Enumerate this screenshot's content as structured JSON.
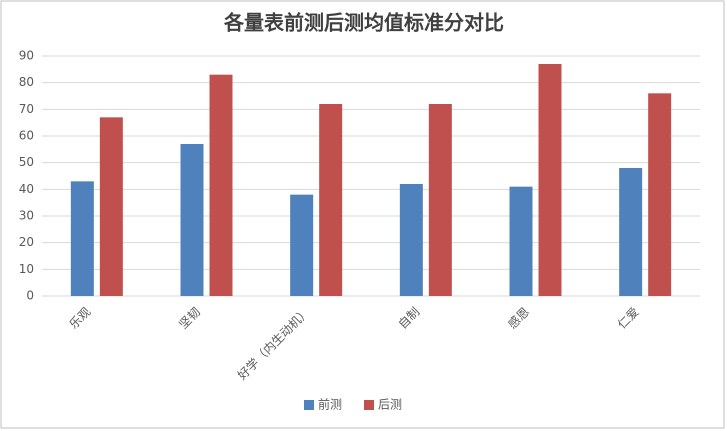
{
  "chart_data": {
    "type": "bar",
    "title": "各量表前测后测均值标准分对比",
    "categories": [
      "乐观",
      "坚韧",
      "好学（内生动机）",
      "自制",
      "感恩",
      "仁爱"
    ],
    "series": [
      {
        "name": "前测",
        "color": "#4f81bd",
        "values": [
          43,
          57,
          38,
          42,
          41,
          48
        ]
      },
      {
        "name": "后测",
        "color": "#c0504d",
        "values": [
          67,
          83,
          72,
          72,
          87,
          76
        ]
      }
    ],
    "ylim": [
      0,
      90
    ],
    "yticks": [
      0,
      10,
      20,
      30,
      40,
      50,
      60,
      70,
      80,
      90
    ],
    "grid": true,
    "legend": "bottom"
  }
}
